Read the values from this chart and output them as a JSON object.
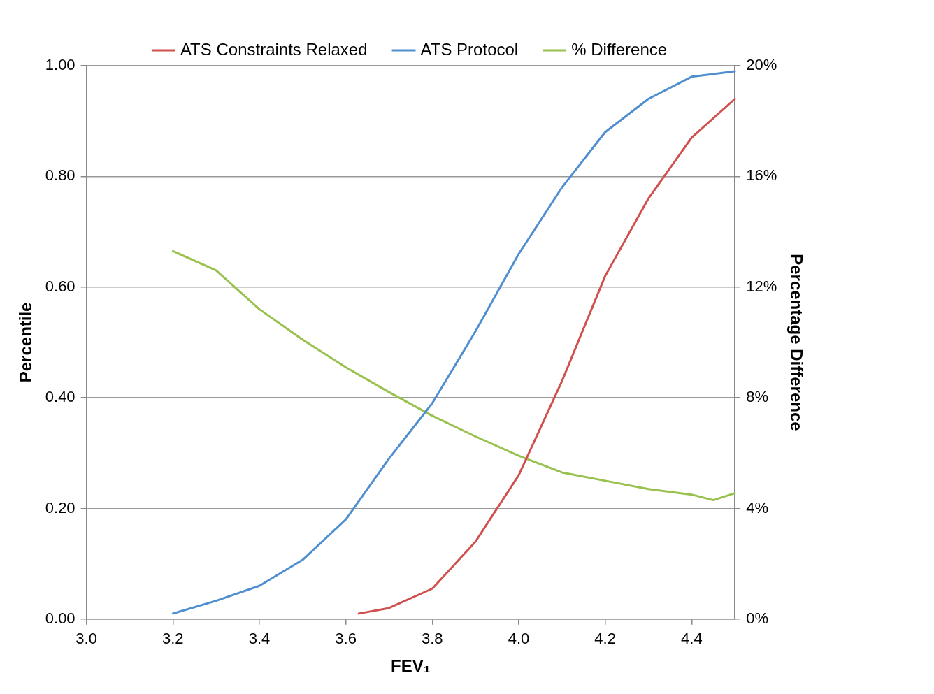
{
  "chart_data": {
    "type": "line",
    "xlabel": "FEV₁",
    "ylabel": "Percentile",
    "y2label": "Percentage Difference",
    "xlim": [
      3.0,
      4.5
    ],
    "xticks": [
      {
        "value": 3.0,
        "label": "3.0"
      },
      {
        "value": 3.2,
        "label": "3.2"
      },
      {
        "value": 3.4,
        "label": "3.4"
      },
      {
        "value": 3.6,
        "label": "3.6"
      },
      {
        "value": 3.8,
        "label": "3.8"
      },
      {
        "value": 4.0,
        "label": "4.0"
      },
      {
        "value": 4.2,
        "label": "4.2"
      },
      {
        "value": 4.4,
        "label": "4.4"
      }
    ],
    "ylim": [
      0,
      1
    ],
    "yticks": [
      {
        "value": 0,
        "label": "0.00"
      },
      {
        "value": 0.2,
        "label": "0.20"
      },
      {
        "value": 0.4,
        "label": "0.40"
      },
      {
        "value": 0.6,
        "label": "0.60"
      },
      {
        "value": 0.8,
        "label": "0.80"
      },
      {
        "value": 1,
        "label": "1.00"
      }
    ],
    "y2lim": [
      0,
      20
    ],
    "y2ticks": [
      {
        "value": 0,
        "label": "0%"
      },
      {
        "value": 4,
        "label": "4%"
      },
      {
        "value": 8,
        "label": "8%"
      },
      {
        "value": 12,
        "label": "12%"
      },
      {
        "value": 16,
        "label": "16%"
      },
      {
        "value": 20,
        "label": "20%"
      }
    ],
    "grid": "y",
    "legend": "top",
    "marker": "none",
    "line_style": "solid",
    "series": [
      {
        "name": "ATS Constraints Relaxed",
        "color": "#d0504d",
        "x": [
          3.63,
          3.7,
          3.8,
          3.9,
          4.0,
          4.1,
          4.2,
          4.3,
          4.4,
          4.5
        ],
        "values": [
          0.01,
          0.02,
          0.055,
          0.14,
          0.26,
          0.43,
          0.62,
          0.76,
          0.87,
          0.94
        ]
      },
      {
        "name": "ATS Protocol",
        "color": "#4f8fd0",
        "x": [
          3.2,
          3.3,
          3.4,
          3.5,
          3.6,
          3.7,
          3.8,
          3.9,
          4.0,
          4.1,
          4.2,
          4.3,
          4.4,
          4.5
        ],
        "values": [
          0.01,
          0.033,
          0.06,
          0.107,
          0.18,
          0.29,
          0.39,
          0.52,
          0.66,
          0.78,
          0.88,
          0.94,
          0.98,
          0.99
        ]
      },
      {
        "name": "% Difference",
        "color": "#99c14f",
        "axis": "y2",
        "x": [
          3.2,
          3.3,
          3.4,
          3.5,
          3.6,
          3.7,
          3.8,
          3.9,
          4.0,
          4.1,
          4.2,
          4.3,
          4.4,
          4.45,
          4.5
        ],
        "values": [
          13.3,
          12.6,
          11.2,
          10.1,
          9.1,
          8.2,
          7.35,
          6.6,
          5.9,
          5.3,
          5.0,
          4.7,
          4.5,
          4.3,
          4.55
        ]
      }
    ]
  }
}
